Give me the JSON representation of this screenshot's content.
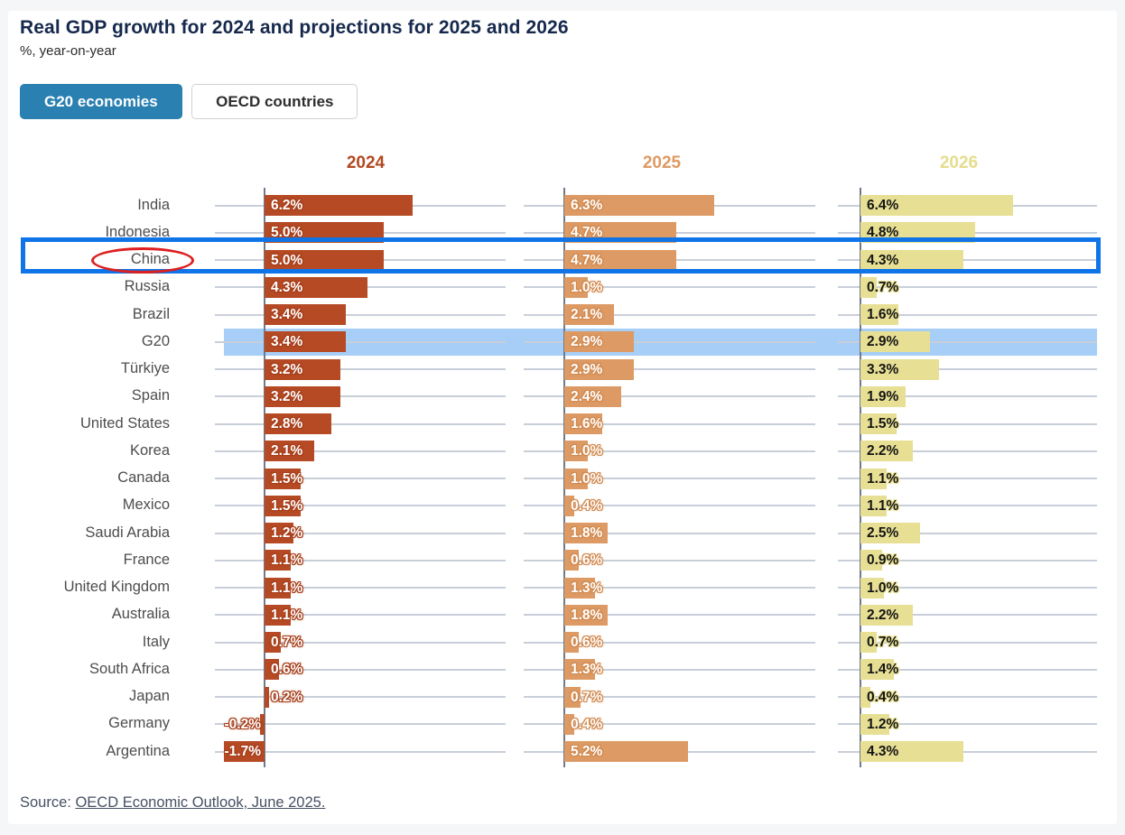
{
  "header": {
    "title": "Real GDP growth for 2024 and projections for 2025 and 2026",
    "subtitle": "%, year-on-year"
  },
  "toggle": {
    "buttons": [
      {
        "label": "G20 economies",
        "active": true,
        "bg_color": "#2a80b0"
      },
      {
        "label": "OECD countries",
        "active": false
      }
    ]
  },
  "source": {
    "prefix": "Source: ",
    "link_text": "OECD Economic Outlook, June 2025."
  },
  "chart_data": {
    "type": "bar",
    "orientation": "horizontal",
    "value_suffix": "%",
    "categories": [
      "India",
      "Indonesia",
      "China",
      "Russia",
      "Brazil",
      "G20",
      "Türkiye",
      "Spain",
      "United States",
      "Korea",
      "Canada",
      "Mexico",
      "Saudi Arabia",
      "France",
      "United Kingdom",
      "Australia",
      "Italy",
      "South Africa",
      "Japan",
      "Germany",
      "Argentina"
    ],
    "series": [
      {
        "name": "2024",
        "color": "#b54a24",
        "header_color": "#b3481f",
        "label_color": "#ffffff",
        "halo_color": "#a63e1a",
        "values": [
          6.2,
          5.0,
          5.0,
          4.3,
          3.4,
          3.4,
          3.2,
          3.2,
          2.8,
          2.1,
          1.5,
          1.5,
          1.2,
          1.1,
          1.1,
          1.1,
          0.7,
          0.6,
          0.2,
          -0.2,
          -1.7
        ]
      },
      {
        "name": "2025",
        "color": "#dd9a64",
        "header_color": "#dd9a64",
        "label_color": "#ffffff",
        "halo_color": "#d18a50",
        "values": [
          6.3,
          4.7,
          4.7,
          1.0,
          2.1,
          2.9,
          2.9,
          2.4,
          1.6,
          1.0,
          1.0,
          0.4,
          1.8,
          0.6,
          1.3,
          1.8,
          0.6,
          1.3,
          0.7,
          0.4,
          5.2
        ]
      },
      {
        "name": "2026",
        "color": "#e7df94",
        "header_color": "#e5dd8c",
        "label_color": "#141414",
        "halo_color": "#e7df94",
        "values": [
          6.4,
          4.8,
          4.3,
          0.7,
          1.6,
          2.9,
          3.3,
          1.9,
          1.5,
          2.2,
          1.1,
          1.1,
          2.5,
          0.9,
          1.0,
          2.2,
          0.7,
          1.4,
          0.4,
          1.2,
          4.3
        ]
      }
    ],
    "highlight_row": "G20",
    "highlight_band_color": "#a6cef7",
    "annotations": {
      "china_box": {
        "row": "China",
        "color": "#0e74e8"
      },
      "china_ellipse": {
        "label": "China",
        "color": "#dd1f1f"
      }
    },
    "grid": true,
    "legend_position": "column-headers",
    "xlim": [
      -2,
      7
    ],
    "title": "Real GDP growth for 2024 and projections for 2025 and 2026",
    "xlabel": "%, year-on-year",
    "ylabel": ""
  }
}
